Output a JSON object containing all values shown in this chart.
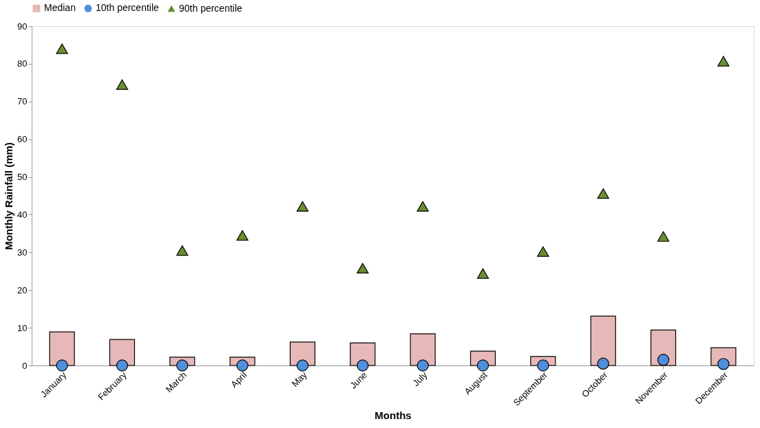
{
  "chart_data": {
    "type": "bar",
    "xlabel": "Months",
    "ylabel": "Monthly Rainfall (mm)",
    "categories": [
      "January",
      "February",
      "March",
      "April",
      "May",
      "June",
      "July",
      "August",
      "September",
      "October",
      "November",
      "December"
    ],
    "series": [
      {
        "name": "Median",
        "marker": "square",
        "color": "#e6b8b7",
        "values": [
          8.9,
          6.9,
          2.2,
          2.2,
          6.2,
          6.0,
          8.4,
          3.8,
          2.4,
          13.1,
          9.4,
          4.7
        ]
      },
      {
        "name": "10th percentile",
        "type": "scatter",
        "marker": "circle",
        "color": "#4f8fdc",
        "values": [
          0,
          0,
          0,
          0,
          0,
          0,
          0,
          0,
          0,
          0.5,
          1.5,
          0.4
        ]
      },
      {
        "name": "90th percentile",
        "type": "scatter",
        "marker": "triangle",
        "color": "#6a8e2f",
        "values": [
          84,
          74.5,
          30.5,
          34.5,
          42.2,
          25.8,
          42.2,
          24.4,
          30.2,
          45.6,
          34.2,
          80.7
        ]
      }
    ],
    "ylim": [
      0,
      90
    ],
    "yticks": [
      0,
      10,
      20,
      30,
      40,
      50,
      60,
      70,
      80,
      90
    ],
    "grid": false,
    "legend": "top"
  }
}
